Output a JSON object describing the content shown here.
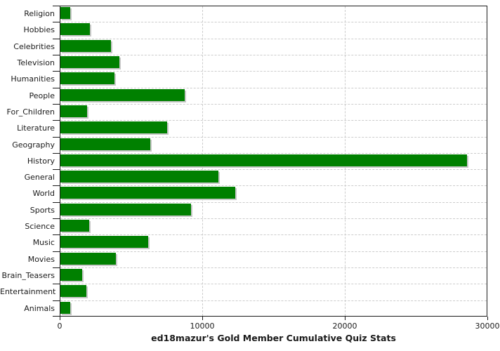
{
  "chart_data": {
    "type": "bar",
    "orientation": "horizontal",
    "title": "ed18mazur's Gold Member Cumulative Quiz Stats",
    "categories": [
      "Religion",
      "Hobbies",
      "Celebrities",
      "Television",
      "Humanities",
      "People",
      "For_Children",
      "Literature",
      "Geography",
      "History",
      "General",
      "World",
      "Sports",
      "Science",
      "Music",
      "Movies",
      "Brain_Teasers",
      "Entertainment",
      "Animals"
    ],
    "values": [
      700,
      2050,
      3550,
      4150,
      3800,
      8730,
      1880,
      7470,
      6290,
      28500,
      11100,
      12280,
      9170,
      2000,
      6150,
      3880,
      1550,
      1840,
      700
    ],
    "xlabel": "",
    "ylabel": "",
    "xlim": [
      0,
      30000
    ],
    "x_ticks": [
      0,
      10000,
      20000,
      30000
    ],
    "x_tick_labels": [
      "0",
      "10000",
      "20000",
      "30000"
    ],
    "grid": true,
    "legend": false,
    "colors": {
      "bar_fill": "#008000",
      "bar_shadow": "#c8c8c8",
      "grid_line": "#cccccc",
      "axis_line": "#1a1a1a",
      "text": "#1a1a1a",
      "background": "#ffffff"
    }
  }
}
